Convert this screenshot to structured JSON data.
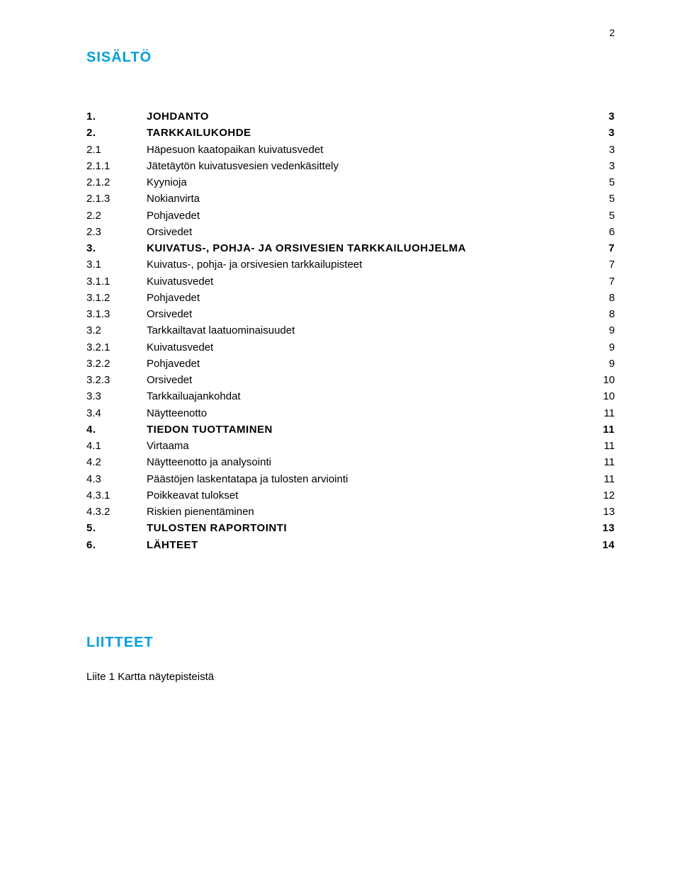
{
  "page_number": "2",
  "heading": "SISÄLTÖ",
  "colors": {
    "heading": "#009fdf",
    "text": "#000000",
    "background": "#ffffff"
  },
  "typography": {
    "heading_fontsize_pt": 15,
    "body_fontsize_pt": 11,
    "font_family": "Verdana"
  },
  "toc": [
    {
      "num": "1.",
      "title": "JOHDANTO",
      "page": "3",
      "bold": true
    },
    {
      "num": "2.",
      "title": "TARKKAILUKOHDE",
      "page": "3",
      "bold": true
    },
    {
      "num": "2.1",
      "title": "Häpesuon kaatopaikan kuivatusvedet",
      "page": "3",
      "bold": false
    },
    {
      "num": "2.1.1",
      "title": "Jätetäytön kuivatusvesien vedenkäsittely",
      "page": "3",
      "bold": false
    },
    {
      "num": "2.1.2",
      "title": "Kyynioja",
      "page": "5",
      "bold": false
    },
    {
      "num": "2.1.3",
      "title": "Nokianvirta",
      "page": "5",
      "bold": false
    },
    {
      "num": "2.2",
      "title": "Pohjavedet",
      "page": "5",
      "bold": false
    },
    {
      "num": "2.3",
      "title": "Orsivedet",
      "page": "6",
      "bold": false
    },
    {
      "num": "3.",
      "title": "KUIVATUS-, POHJA- JA ORSIVESIEN TARKKAILUOHJELMA",
      "page": "7",
      "bold": true
    },
    {
      "num": "3.1",
      "title": "Kuivatus-, pohja- ja orsivesien tarkkailupisteet",
      "page": "7",
      "bold": false
    },
    {
      "num": "3.1.1",
      "title": "Kuivatusvedet",
      "page": "7",
      "bold": false
    },
    {
      "num": "3.1.2",
      "title": "Pohjavedet",
      "page": "8",
      "bold": false
    },
    {
      "num": "3.1.3",
      "title": "Orsivedet",
      "page": "8",
      "bold": false
    },
    {
      "num": "3.2",
      "title": "Tarkkailtavat laatuominaisuudet",
      "page": "9",
      "bold": false
    },
    {
      "num": "3.2.1",
      "title": "Kuivatusvedet",
      "page": "9",
      "bold": false
    },
    {
      "num": "3.2.2",
      "title": "Pohjavedet",
      "page": "9",
      "bold": false
    },
    {
      "num": "3.2.3",
      "title": "Orsivedet",
      "page": "10",
      "bold": false
    },
    {
      "num": "3.3",
      "title": "Tarkkailuajankohdat",
      "page": "10",
      "bold": false
    },
    {
      "num": "3.4",
      "title": "Näytteenotto",
      "page": "11",
      "bold": false
    },
    {
      "num": "4.",
      "title": "TIEDON TUOTTAMINEN",
      "page": "11",
      "bold": true
    },
    {
      "num": "4.1",
      "title": "Virtaama",
      "page": "11",
      "bold": false
    },
    {
      "num": "4.2",
      "title": "Näytteenotto ja analysointi",
      "page": "11",
      "bold": false
    },
    {
      "num": "4.3",
      "title": "Päästöjen laskentatapa ja tulosten arviointi",
      "page": "11",
      "bold": false
    },
    {
      "num": "4.3.1",
      "title": "Poikkeavat tulokset",
      "page": "12",
      "bold": false
    },
    {
      "num": "4.3.2",
      "title": "Riskien pienentäminen",
      "page": "13",
      "bold": false
    },
    {
      "num": "5.",
      "title": "TULOSTEN RAPORTOINTI",
      "page": "13",
      "bold": true
    },
    {
      "num": "6.",
      "title": "LÄHTEET",
      "page": "14",
      "bold": true
    }
  ],
  "attachments_heading": "LIITTEET",
  "attachments": [
    "Liite 1 Kartta näytepisteistä"
  ]
}
